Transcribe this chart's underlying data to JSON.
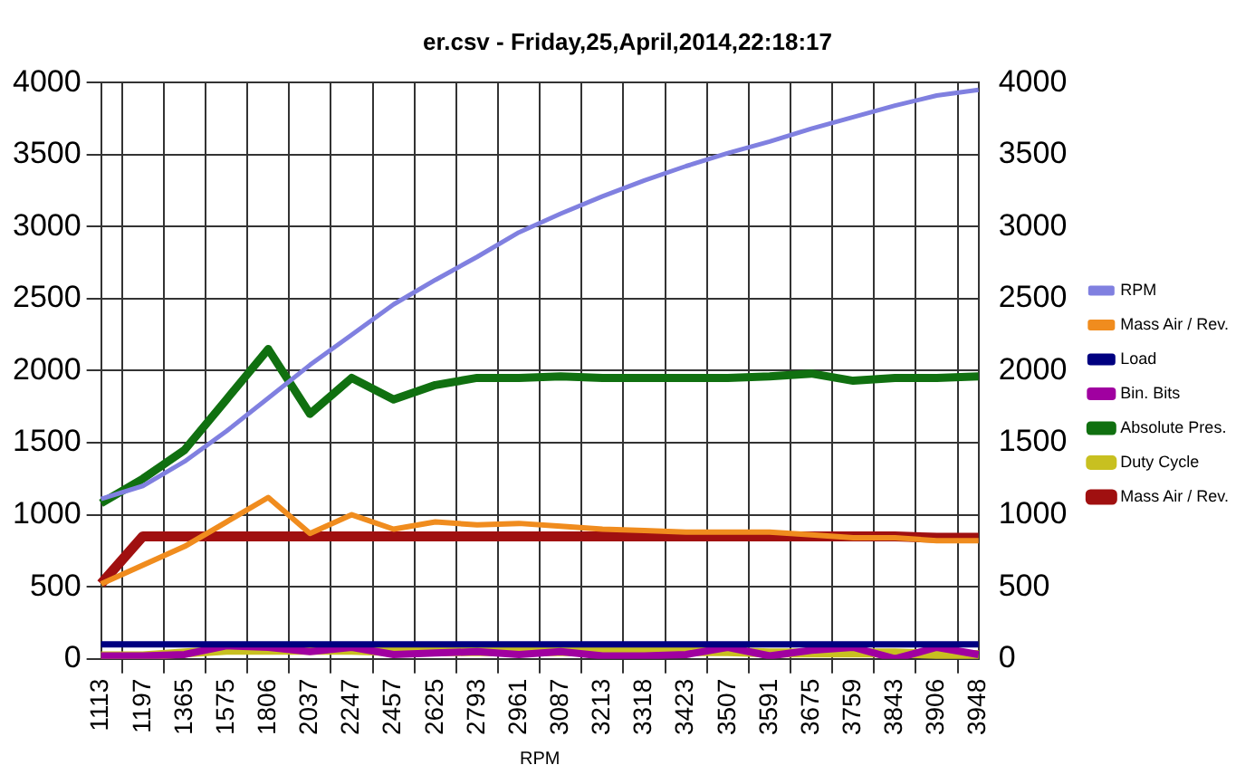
{
  "chart_data": {
    "type": "line",
    "title": "er.csv - Friday,25,April,2014,22:18:17",
    "xlabel": "RPM",
    "categories": [
      "1113",
      "1197",
      "1365",
      "1575",
      "1806",
      "2037",
      "2247",
      "2457",
      "2625",
      "2793",
      "2961",
      "3087",
      "3213",
      "3318",
      "3423",
      "3507",
      "3591",
      "3675",
      "3759",
      "3843",
      "3906",
      "3948"
    ],
    "series": [
      {
        "name": "RPM",
        "color": "#8080e0",
        "values": [
          1110,
          1200,
          1370,
          1580,
          1810,
          2040,
          2250,
          2460,
          2630,
          2790,
          2960,
          3090,
          3210,
          3320,
          3420,
          3510,
          3590,
          3680,
          3760,
          3840,
          3910,
          3950
        ]
      },
      {
        "name": "Mass Air / Rev.",
        "color": "#f08c1e",
        "values": [
          520,
          650,
          780,
          950,
          1120,
          870,
          1000,
          900,
          950,
          930,
          940,
          920,
          900,
          890,
          880,
          880,
          880,
          860,
          840,
          840,
          820,
          820
        ]
      },
      {
        "name": "Load",
        "color": "#000080",
        "values": [
          100,
          100,
          100,
          100,
          100,
          100,
          100,
          100,
          100,
          100,
          100,
          100,
          100,
          100,
          100,
          100,
          100,
          100,
          100,
          100,
          100,
          100
        ]
      },
      {
        "name": "Bin. Bits",
        "color": "#a000a0",
        "values": [
          20,
          20,
          30,
          90,
          80,
          50,
          80,
          30,
          40,
          50,
          30,
          50,
          20,
          20,
          30,
          80,
          20,
          60,
          80,
          0,
          80,
          30
        ]
      },
      {
        "name": "Absolute Pres.",
        "color": "#107010",
        "values": [
          1080,
          1250,
          1450,
          1800,
          2150,
          1700,
          1950,
          1800,
          1900,
          1950,
          1950,
          1960,
          1950,
          1950,
          1950,
          1950,
          1960,
          1980,
          1930,
          1950,
          1950,
          1960
        ]
      },
      {
        "name": "Duty Cycle",
        "color": "#c8c020",
        "values": [
          20,
          20,
          40,
          60,
          60,
          60,
          60,
          50,
          50,
          50,
          50,
          50,
          50,
          50,
          50,
          50,
          40,
          40,
          40,
          40,
          30,
          30
        ]
      },
      {
        "name": "Mass Air / Rev.",
        "color": "#a01010",
        "values": [
          520,
          850,
          850,
          850,
          850,
          850,
          850,
          850,
          850,
          850,
          850,
          850,
          850,
          850,
          850,
          850,
          850,
          850,
          850,
          850,
          840,
          840
        ]
      }
    ],
    "ylim": [
      0,
      4000
    ],
    "yticks": [
      0,
      500,
      1000,
      1500,
      2000,
      2500,
      3000,
      3500,
      4000
    ],
    "y2lim": [
      0,
      4000
    ],
    "y2ticks": [
      0,
      500,
      1000,
      1500,
      2000,
      2500,
      3000,
      3500,
      4000
    ],
    "grid": true,
    "legend": "right",
    "marker": "none",
    "line_style": "solid"
  }
}
